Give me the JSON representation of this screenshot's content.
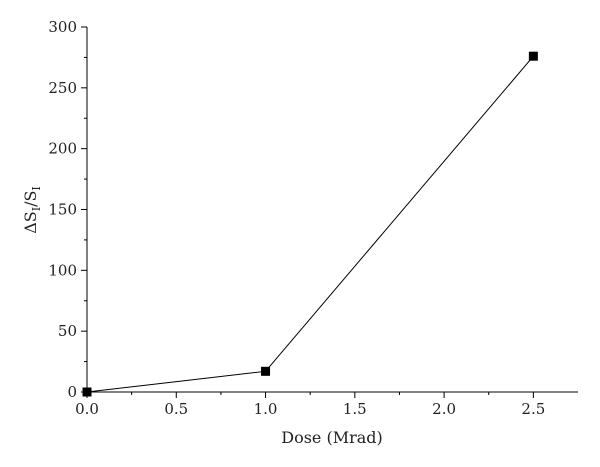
{
  "chart_data": {
    "type": "line",
    "title": "",
    "xlabel": "Dose (Mrad)",
    "ylabel": {
      "delta": "Δ",
      "var": "S",
      "sub": "I",
      "sep": "/"
    },
    "xlim": [
      0,
      2.75
    ],
    "ylim": [
      0,
      300
    ],
    "x_ticks": [
      "0.0",
      "0.5",
      "1.0",
      "1.5",
      "2.0",
      "2.5"
    ],
    "y_ticks": [
      "0",
      "50",
      "100",
      "150",
      "200",
      "250",
      "300"
    ],
    "grid": false,
    "legend": "none",
    "series": [
      {
        "marker": "square",
        "color": "#000000",
        "points": [
          {
            "x": 0.0,
            "y": 0
          },
          {
            "x": 1.0,
            "y": 17
          },
          {
            "x": 2.5,
            "y": 276
          }
        ]
      }
    ]
  }
}
